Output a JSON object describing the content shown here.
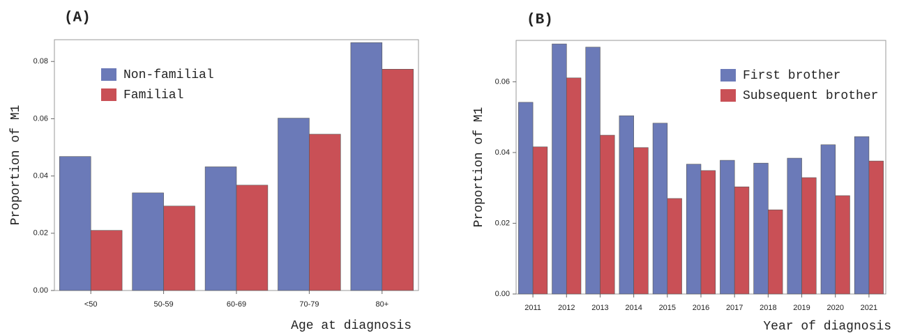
{
  "chart_data": [
    {
      "type": "bar",
      "panel_label": "(A)",
      "xlabel": "Age at diagnosis",
      "ylabel": "Proportion of M1",
      "categories": [
        "<50",
        "50-59",
        "60-69",
        "70-79",
        "80+"
      ],
      "series": [
        {
          "name": "Non-familial",
          "color": "#6b7ab8",
          "values": [
            0.0468,
            0.0341,
            0.0432,
            0.0602,
            0.0866
          ]
        },
        {
          "name": "Familial",
          "color": "#c95056",
          "values": [
            0.021,
            0.0295,
            0.0368,
            0.0546,
            0.0773
          ]
        }
      ],
      "ylim": [
        0,
        0.0876
      ],
      "yticks": [
        {
          "value": 0,
          "label": "0.00"
        },
        0.02,
        0.04,
        0.06,
        0.08
      ],
      "legend": "upper left"
    },
    {
      "type": "bar",
      "panel_label": "(B)",
      "xlabel": "Year of diagnosis",
      "ylabel": "Proportion of M1",
      "categories": [
        "2011",
        "2012",
        "2013",
        "2014",
        "2015",
        "2016",
        "2017",
        "2018",
        "2019",
        "2020",
        "2021"
      ],
      "series": [
        {
          "name": "First brother",
          "color": "#6b7ab8",
          "values": [
            0.0542,
            0.0707,
            0.0698,
            0.0504,
            0.0483,
            0.0367,
            0.0378,
            0.037,
            0.0384,
            0.0422,
            0.0445
          ]
        },
        {
          "name": "Subsequent brother",
          "color": "#c95056",
          "values": [
            0.0416,
            0.0611,
            0.0449,
            0.0414,
            0.027,
            0.0349,
            0.0303,
            0.0238,
            0.0329,
            0.0278,
            0.0376
          ]
        }
      ],
      "ylim": [
        0,
        0.0717
      ],
      "yticks": [
        {
          "value": 0,
          "label": "0.00"
        },
        0.02,
        0.04,
        0.06
      ],
      "legend": "upper right"
    }
  ]
}
